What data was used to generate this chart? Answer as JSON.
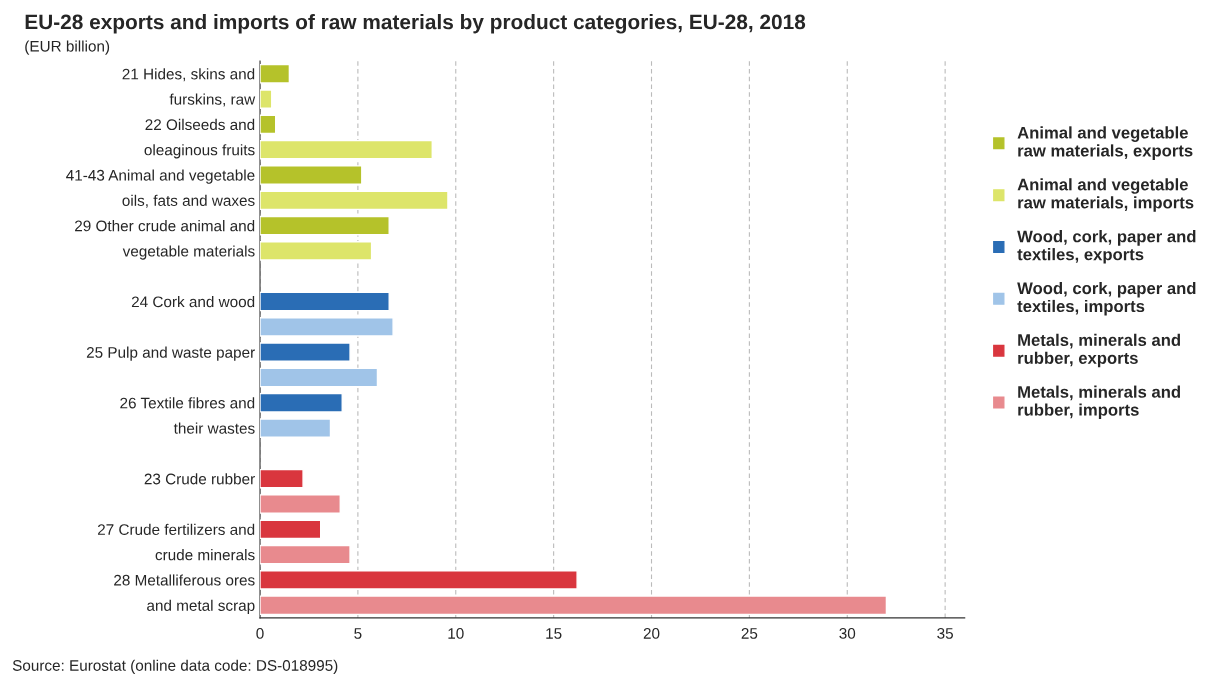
{
  "chart_data": {
    "type": "bar",
    "orientation": "horizontal",
    "title": "EU-28 exports and imports of raw materials by product categories, EU-28, 2018",
    "subtitle": "(EUR billion)",
    "categories": [
      "21 Hides, skins and",
      "furskins, raw",
      "22 Oilseeds and",
      "oleaginous fruits",
      "41-43 Animal and vegetable",
      "oils, fats and waxes",
      "29 Other crude animal and",
      "vegetable materials",
      null,
      "24 Cork and wood",
      null,
      "25 Pulp and waste paper",
      null,
      "26 Textile fibres and",
      "their wastes",
      null,
      "23 Crude rubber",
      null,
      "27 Crude fertilizers and",
      "crude minerals",
      "28 Metalliferous ores",
      "and metal scrap"
    ],
    "series": [
      {
        "name": "Animal and vegetable raw materials, exports",
        "color": "#b5c22a",
        "values": [
          1.5,
          null,
          0.8,
          null,
          5.2,
          null,
          6.6,
          null,
          null,
          null,
          null,
          null,
          null,
          null,
          null,
          null,
          null,
          null,
          null,
          null,
          null,
          null
        ]
      },
      {
        "name": "Animal and vegetable raw materials, imports",
        "color": "#dde56a",
        "values": [
          null,
          0.6,
          null,
          8.8,
          null,
          9.6,
          null,
          5.7,
          null,
          null,
          null,
          null,
          null,
          null,
          null,
          null,
          null,
          null,
          null,
          null,
          null,
          null
        ]
      },
      {
        "name": "Wood, cork, paper and textiles, exports",
        "color": "#2a6db5",
        "values": [
          null,
          null,
          null,
          null,
          null,
          null,
          null,
          null,
          null,
          6.6,
          null,
          4.6,
          null,
          4.2,
          null,
          null,
          null,
          null,
          null,
          null,
          null,
          null
        ]
      },
      {
        "name": "Wood, cork, paper and textiles, imports",
        "color": "#a0c4e8",
        "values": [
          null,
          null,
          null,
          null,
          null,
          null,
          null,
          null,
          null,
          null,
          6.8,
          null,
          6.0,
          null,
          3.6,
          null,
          null,
          null,
          null,
          null,
          null,
          null
        ]
      },
      {
        "name": "Metals, minerals and rubber, exports",
        "color": "#d9363e",
        "values": [
          null,
          null,
          null,
          null,
          null,
          null,
          null,
          null,
          null,
          null,
          null,
          null,
          null,
          null,
          null,
          null,
          2.2,
          null,
          3.1,
          null,
          16.2,
          null
        ]
      },
      {
        "name": "Metals, minerals and rubber, imports",
        "color": "#e88a8e",
        "values": [
          null,
          null,
          null,
          null,
          null,
          null,
          null,
          null,
          null,
          null,
          null,
          null,
          null,
          null,
          null,
          null,
          null,
          4.1,
          null,
          4.6,
          null,
          32.0
        ]
      }
    ],
    "xlim": [
      0,
      36
    ],
    "xticks": [
      0,
      5,
      10,
      15,
      20,
      25,
      30,
      35
    ],
    "grid": "x",
    "legend": "right",
    "annotations": [
      "Source: Eurostat (online data code: DS-018995)"
    ]
  }
}
